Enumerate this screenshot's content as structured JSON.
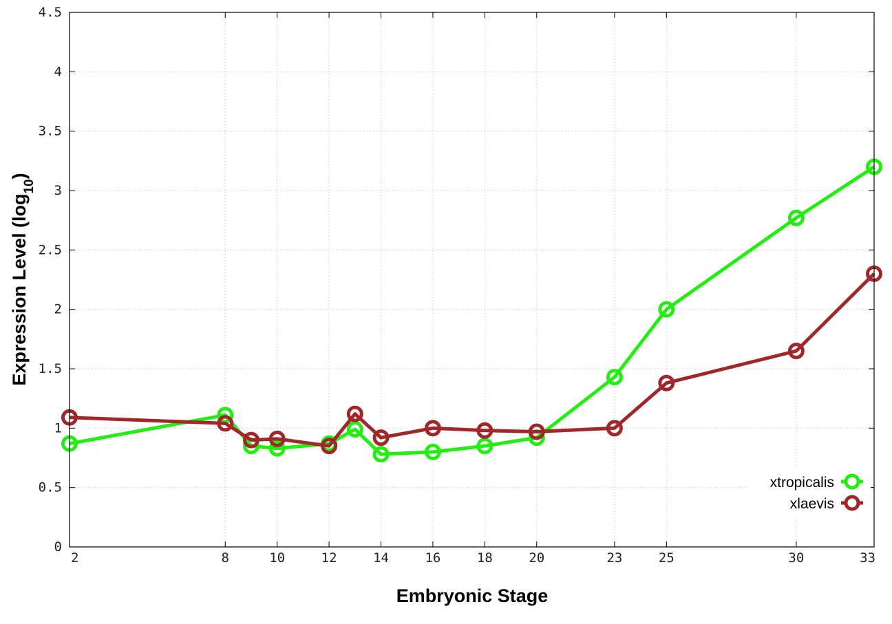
{
  "chart_data": {
    "type": "line",
    "title": "",
    "xlabel": "Embryonic Stage",
    "ylabel_main": "Expression Level (log",
    "ylabel_sub": "10",
    "ylabel_close": ")",
    "xlim": [
      2,
      33
    ],
    "ylim": [
      0,
      4.5
    ],
    "x_ticks": [
      2,
      8,
      10,
      12,
      14,
      16,
      18,
      20,
      23,
      25,
      30,
      33
    ],
    "y_ticks": [
      0,
      0.5,
      1,
      1.5,
      2,
      2.5,
      3,
      3.5,
      4,
      4.5
    ],
    "y_tick_labels": [
      "0",
      "0.5",
      "1",
      "1.5",
      "2",
      "2.5",
      "3",
      "3.5",
      "4",
      "4.5"
    ],
    "grid": true,
    "legend_position": "bottom-right",
    "series": [
      {
        "name": "xtropicalis",
        "color": "#22ee11",
        "x": [
          2,
          8,
          9,
          10,
          12,
          13,
          14,
          16,
          18,
          20,
          23,
          25,
          30,
          33
        ],
        "y": [
          0.87,
          1.11,
          0.85,
          0.83,
          0.87,
          0.99,
          0.78,
          0.8,
          0.85,
          0.92,
          1.43,
          2.0,
          2.77,
          3.2
        ]
      },
      {
        "name": "xlaevis",
        "color": "#a0282a",
        "x": [
          2,
          8,
          9,
          10,
          12,
          13,
          14,
          16,
          18,
          20,
          23,
          25,
          30,
          33
        ],
        "y": [
          1.09,
          1.04,
          0.9,
          0.91,
          0.85,
          1.12,
          0.92,
          1.0,
          0.98,
          0.97,
          1.0,
          1.38,
          1.65,
          2.3
        ]
      }
    ]
  }
}
